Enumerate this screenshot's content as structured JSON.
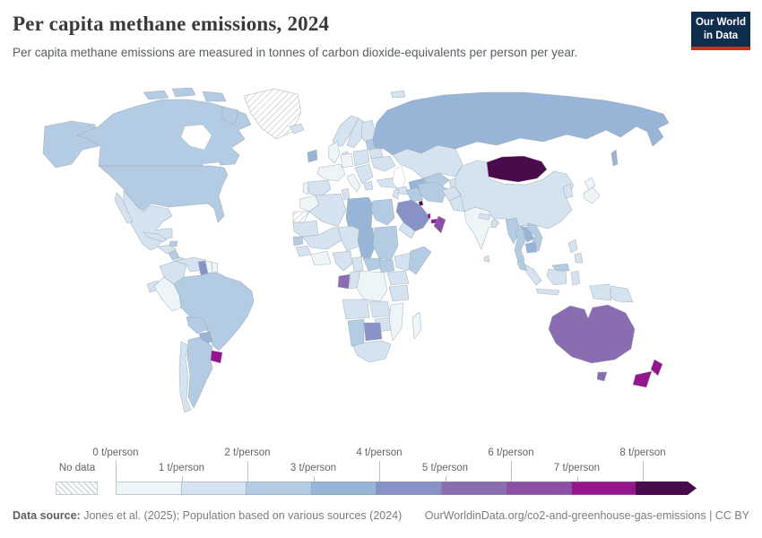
{
  "header": {
    "title": "Per capita methane emissions, 2024",
    "subtitle": "Per capita methane emissions are measured in tonnes of carbon dioxide-equivalents per person per year."
  },
  "logo": {
    "line1": "Our World",
    "line2": "in Data",
    "bg": "#0f2e4d",
    "accent": "#cf2d24"
  },
  "legend": {
    "no_data_label": "No data",
    "ticks": [
      "0 t/person",
      "1 t/person",
      "2 t/person",
      "3 t/person",
      "4 t/person",
      "5 t/person",
      "6 t/person",
      "7 t/person",
      "8 t/person"
    ],
    "bins": [
      {
        "range": "0–1",
        "color": "#eef5f8"
      },
      {
        "range": "1–2",
        "color": "#d4e3ef"
      },
      {
        "range": "2–3",
        "color": "#b3cbe3"
      },
      {
        "range": "3–4",
        "color": "#98b4d7"
      },
      {
        "range": "4–5",
        "color": "#8992c6"
      },
      {
        "range": "5–6",
        "color": "#8a6cb1"
      },
      {
        "range": "6–7",
        "color": "#8b50a4"
      },
      {
        "range": "7–8",
        "color": "#95158f"
      },
      {
        "range": "8+",
        "color": "#4a0b4d",
        "arrow": true
      }
    ]
  },
  "footer": {
    "datasource_label": "Data source:",
    "datasource_text": " Jones et al. (2025); Population based on various sources (2024)",
    "link_text": "OurWorldinData.org/co2-and-greenhouse-gas-emissions | CC BY"
  },
  "chart_data": {
    "type": "choropleth",
    "title": "Per capita methane emissions, 2024",
    "unit": "tonnes of CO2-equivalents per person per year (t/person)",
    "year": 2024,
    "legend_position": "bottom",
    "bins": [
      "0–1",
      "1–2",
      "2–3",
      "3–4",
      "4–5",
      "5–6",
      "6–7",
      "7–8",
      "8+",
      "No data"
    ],
    "countries": {
      "canada": {
        "name": "Canada",
        "range": "2–3",
        "color": "#b3cbe3"
      },
      "united-states": {
        "name": "United States",
        "range": "2–3",
        "color": "#b3cbe3"
      },
      "greenland": {
        "name": "Greenland",
        "range": "No data",
        "color": "hatch"
      },
      "iceland": {
        "name": "Iceland",
        "range": "1–2",
        "color": "#d4e3ef"
      },
      "mexico": {
        "name": "Mexico",
        "range": "1–2",
        "color": "#d4e3ef"
      },
      "guatemala-honduras": {
        "name": "Guatemala/Honduras",
        "range": "1–2",
        "color": "#d4e3ef"
      },
      "nicaragua": {
        "name": "Nicaragua",
        "range": "2–3",
        "color": "#b3cbe3"
      },
      "costa-rica-panama": {
        "name": "Costa Rica/Panama",
        "range": "1–2",
        "color": "#d4e3ef"
      },
      "cuba": {
        "name": "Cuba",
        "range": "1–2",
        "color": "#d4e3ef"
      },
      "hispaniola": {
        "name": "Haiti/Dominican Republic",
        "range": "2–3",
        "color": "#b3cbe3"
      },
      "colombia": {
        "name": "Colombia",
        "range": "1–2",
        "color": "#d4e3ef"
      },
      "venezuela": {
        "name": "Venezuela",
        "range": "1–2",
        "color": "#d4e3ef"
      },
      "guyana": {
        "name": "Guyana",
        "range": "4–5",
        "color": "#8992c6"
      },
      "suriname": {
        "name": "Suriname",
        "range": "0–1",
        "color": "#eef5f8"
      },
      "french-guiana": {
        "name": "French Guiana",
        "range": "0–1",
        "color": "#eef5f8"
      },
      "ecuador": {
        "name": "Ecuador",
        "range": "1–2",
        "color": "#d4e3ef"
      },
      "peru": {
        "name": "Peru",
        "range": "0–1",
        "color": "#eef5f8"
      },
      "brazil": {
        "name": "Brazil",
        "range": "2–3",
        "color": "#b3cbe3"
      },
      "bolivia": {
        "name": "Bolivia",
        "range": "2–3",
        "color": "#b3cbe3"
      },
      "paraguay": {
        "name": "Paraguay",
        "range": "3–4",
        "color": "#98b4d7"
      },
      "uruguay": {
        "name": "Uruguay",
        "range": "7–8",
        "color": "#95158f"
      },
      "argentina": {
        "name": "Argentina",
        "range": "2–3",
        "color": "#b3cbe3"
      },
      "chile": {
        "name": "Chile",
        "range": "1–2",
        "color": "#d4e3ef"
      },
      "norway": {
        "name": "Norway",
        "range": "1–2",
        "color": "#d4e3ef"
      },
      "sweden": {
        "name": "Sweden",
        "range": "1–2",
        "color": "#d4e3ef"
      },
      "finland": {
        "name": "Finland",
        "range": "1–2",
        "color": "#d4e3ef"
      },
      "denmark": {
        "name": "Denmark",
        "range": "1–2",
        "color": "#d4e3ef"
      },
      "united-kingdom": {
        "name": "United Kingdom",
        "range": "0–1",
        "color": "#eef5f8"
      },
      "ireland": {
        "name": "Ireland",
        "range": "3–4",
        "color": "#98b4d7"
      },
      "france": {
        "name": "France",
        "range": "0–1",
        "color": "#eef5f8"
      },
      "spain": {
        "name": "Spain",
        "range": "1–2",
        "color": "#d4e3ef"
      },
      "portugal": {
        "name": "Portugal",
        "range": "0–1",
        "color": "#eef5f8"
      },
      "germany": {
        "name": "Germany",
        "range": "0–1",
        "color": "#eef5f8"
      },
      "central-europe": {
        "name": "Poland/Central Europe",
        "range": "1–2",
        "color": "#d4e3ef"
      },
      "italy": {
        "name": "Italy",
        "range": "0–1",
        "color": "#eef5f8"
      },
      "balkans": {
        "name": "Balkans",
        "range": "1–2",
        "color": "#d4e3ef"
      },
      "greece": {
        "name": "Greece",
        "range": "1–2",
        "color": "#d4e3ef"
      },
      "baltics": {
        "name": "Baltic states",
        "range": "2–3",
        "color": "#b3cbe3"
      },
      "belarus": {
        "name": "Belarus",
        "range": "1–2",
        "color": "#d4e3ef"
      },
      "ukraine": {
        "name": "Ukraine",
        "range": "1–2",
        "color": "#d4e3ef"
      },
      "turkey": {
        "name": "Turkey",
        "range": "1–2",
        "color": "#d4e3ef"
      },
      "russia": {
        "name": "Russia",
        "range": "3–4",
        "color": "#98b4d7"
      },
      "kazakhstan": {
        "name": "Kazakhstan",
        "range": "1–2",
        "color": "#d4e3ef"
      },
      "uzbekistan": {
        "name": "Uzbekistan",
        "range": "2–3",
        "color": "#b3cbe3"
      },
      "turkmenistan": {
        "name": "Turkmenistan",
        "range": "3–4",
        "color": "#98b4d7"
      },
      "kyrgyzstan-tajikistan": {
        "name": "Kyrgyzstan/Tajikistan",
        "range": "1–2",
        "color": "#d4e3ef"
      },
      "syria": {
        "name": "Syria",
        "range": "1–2",
        "color": "#d4e3ef"
      },
      "iraq": {
        "name": "Iraq",
        "range": "2–3",
        "color": "#b3cbe3"
      },
      "iran": {
        "name": "Iran",
        "range": "2–3",
        "color": "#b3cbe3"
      },
      "afghanistan": {
        "name": "Afghanistan",
        "range": "1–2",
        "color": "#d4e3ef"
      },
      "pakistan": {
        "name": "Pakistan",
        "range": "1–2",
        "color": "#d4e3ef"
      },
      "israel-jordan": {
        "name": "Israel/Jordan",
        "range": "1–2",
        "color": "#d4e3ef"
      },
      "saudi-arabia": {
        "name": "Saudi Arabia",
        "range": "4–5",
        "color": "#8992c6"
      },
      "kuwait": {
        "name": "Kuwait",
        "range": "8+",
        "color": "#4a0b4d"
      },
      "qatar": {
        "name": "Qatar",
        "range": "7–8",
        "color": "#95158f"
      },
      "united-arab-emirates": {
        "name": "United Arab Emirates",
        "range": "7–8",
        "color": "#95158f"
      },
      "oman": {
        "name": "Oman",
        "range": "6–7",
        "color": "#8b50a4"
      },
      "yemen": {
        "name": "Yemen",
        "range": "1–2",
        "color": "#d4e3ef"
      },
      "india": {
        "name": "India",
        "range": "0–1",
        "color": "#eef5f8"
      },
      "nepal": {
        "name": "Nepal",
        "range": "1–2",
        "color": "#d4e3ef"
      },
      "bangladesh": {
        "name": "Bangladesh",
        "range": "1–2",
        "color": "#d4e3ef"
      },
      "sri-lanka": {
        "name": "Sri Lanka",
        "range": "1–2",
        "color": "#d4e3ef"
      },
      "china": {
        "name": "China",
        "range": "1–2",
        "color": "#d4e3ef"
      },
      "mongolia": {
        "name": "Mongolia",
        "range": "8+",
        "color": "#4a0b4d"
      },
      "korea": {
        "name": "Korea",
        "range": "1–2",
        "color": "#d4e3ef"
      },
      "japan": {
        "name": "Japan",
        "range": "0–1",
        "color": "#eef5f8"
      },
      "myanmar": {
        "name": "Myanmar",
        "range": "2–3",
        "color": "#b3cbe3"
      },
      "laos": {
        "name": "Laos",
        "range": "3–4",
        "color": "#98b4d7"
      },
      "thailand": {
        "name": "Thailand",
        "range": "2–3",
        "color": "#b3cbe3"
      },
      "vietnam": {
        "name": "Vietnam",
        "range": "2–3",
        "color": "#b3cbe3"
      },
      "cambodia": {
        "name": "Cambodia",
        "range": "3–4",
        "color": "#98b4d7"
      },
      "malaysia": {
        "name": "Malaysia",
        "range": "2–3",
        "color": "#b3cbe3"
      },
      "indonesia": {
        "name": "Indonesia",
        "range": "1–2",
        "color": "#d4e3ef"
      },
      "philippines": {
        "name": "Philippines",
        "range": "1–2",
        "color": "#d4e3ef"
      },
      "papua-new-guinea": {
        "name": "Papua New Guinea",
        "range": "1–2",
        "color": "#d4e3ef"
      },
      "australia": {
        "name": "Australia",
        "range": "5–6",
        "color": "#8a6cb1"
      },
      "new-zealand": {
        "name": "New Zealand",
        "range": "7–8",
        "color": "#95158f"
      },
      "morocco": {
        "name": "Morocco",
        "range": "0–1",
        "color": "#eef5f8"
      },
      "western-sahara": {
        "name": "Western Sahara",
        "range": "No data",
        "color": "hatch"
      },
      "algeria": {
        "name": "Algeria",
        "range": "1–2",
        "color": "#d4e3ef"
      },
      "tunisia": {
        "name": "Tunisia",
        "range": "1–2",
        "color": "#d4e3ef"
      },
      "libya": {
        "name": "Libya",
        "range": "3–4",
        "color": "#98b4d7"
      },
      "egypt": {
        "name": "Egypt",
        "range": "2–3",
        "color": "#b3cbe3"
      },
      "mauritania": {
        "name": "Mauritania",
        "range": "1–2",
        "color": "#d4e3ef"
      },
      "mali": {
        "name": "Mali",
        "range": "1–2",
        "color": "#d4e3ef"
      },
      "niger": {
        "name": "Niger",
        "range": "1–2",
        "color": "#d4e3ef"
      },
      "chad": {
        "name": "Chad",
        "range": "3–4",
        "color": "#98b4d7"
      },
      "sudan": {
        "name": "Sudan",
        "range": "2–3",
        "color": "#b3cbe3"
      },
      "senegal": {
        "name": "Senegal",
        "range": "2–3",
        "color": "#b3cbe3"
      },
      "guinea": {
        "name": "Guinea",
        "range": "1–2",
        "color": "#d4e3ef"
      },
      "ivory-coast-ghana": {
        "name": "Côte d'Ivoire/Ghana",
        "range": "0–1",
        "color": "#eef5f8"
      },
      "nigeria": {
        "name": "Nigeria",
        "range": "1–2",
        "color": "#d4e3ef"
      },
      "cameroon": {
        "name": "Cameroon",
        "range": "1–2",
        "color": "#d4e3ef"
      },
      "central-african-republic": {
        "name": "Central African Republic",
        "range": "2–3",
        "color": "#b3cbe3"
      },
      "south-sudan": {
        "name": "South Sudan",
        "range": "2–3",
        "color": "#b3cbe3"
      },
      "ethiopia": {
        "name": "Ethiopia",
        "range": "1–2",
        "color": "#d4e3ef"
      },
      "somalia": {
        "name": "Somalia",
        "range": "2–3",
        "color": "#b3cbe3"
      },
      "uganda-kenya": {
        "name": "Uganda/Kenya",
        "range": "1–2",
        "color": "#d4e3ef"
      },
      "gabon": {
        "name": "Gabon",
        "range": "5–6",
        "color": "#8a6cb1"
      },
      "congo": {
        "name": "Congo",
        "range": "1–2",
        "color": "#d4e3ef"
      },
      "democratic-republic-of-congo": {
        "name": "Democratic Republic of Congo",
        "range": "0–1",
        "color": "#eef5f8"
      },
      "tanzania": {
        "name": "Tanzania",
        "range": "1–2",
        "color": "#d4e3ef"
      },
      "angola": {
        "name": "Angola",
        "range": "1–2",
        "color": "#d4e3ef"
      },
      "zambia": {
        "name": "Zambia",
        "range": "1–2",
        "color": "#d4e3ef"
      },
      "zimbabwe": {
        "name": "Zimbabwe",
        "range": "1–2",
        "color": "#d4e3ef"
      },
      "mozambique": {
        "name": "Mozambique",
        "range": "0–1",
        "color": "#eef5f8"
      },
      "namibia": {
        "name": "Namibia",
        "range": "2–3",
        "color": "#b3cbe3"
      },
      "botswana": {
        "name": "Botswana",
        "range": "4–5",
        "color": "#8992c6"
      },
      "south-africa": {
        "name": "South Africa",
        "range": "1–2",
        "color": "#d4e3ef"
      },
      "madagascar": {
        "name": "Madagascar",
        "range": "0–1",
        "color": "#eef5f8"
      },
      "svalbard": {
        "name": "Svalbard",
        "range": "1–2",
        "color": "#d4e3ef"
      }
    }
  }
}
